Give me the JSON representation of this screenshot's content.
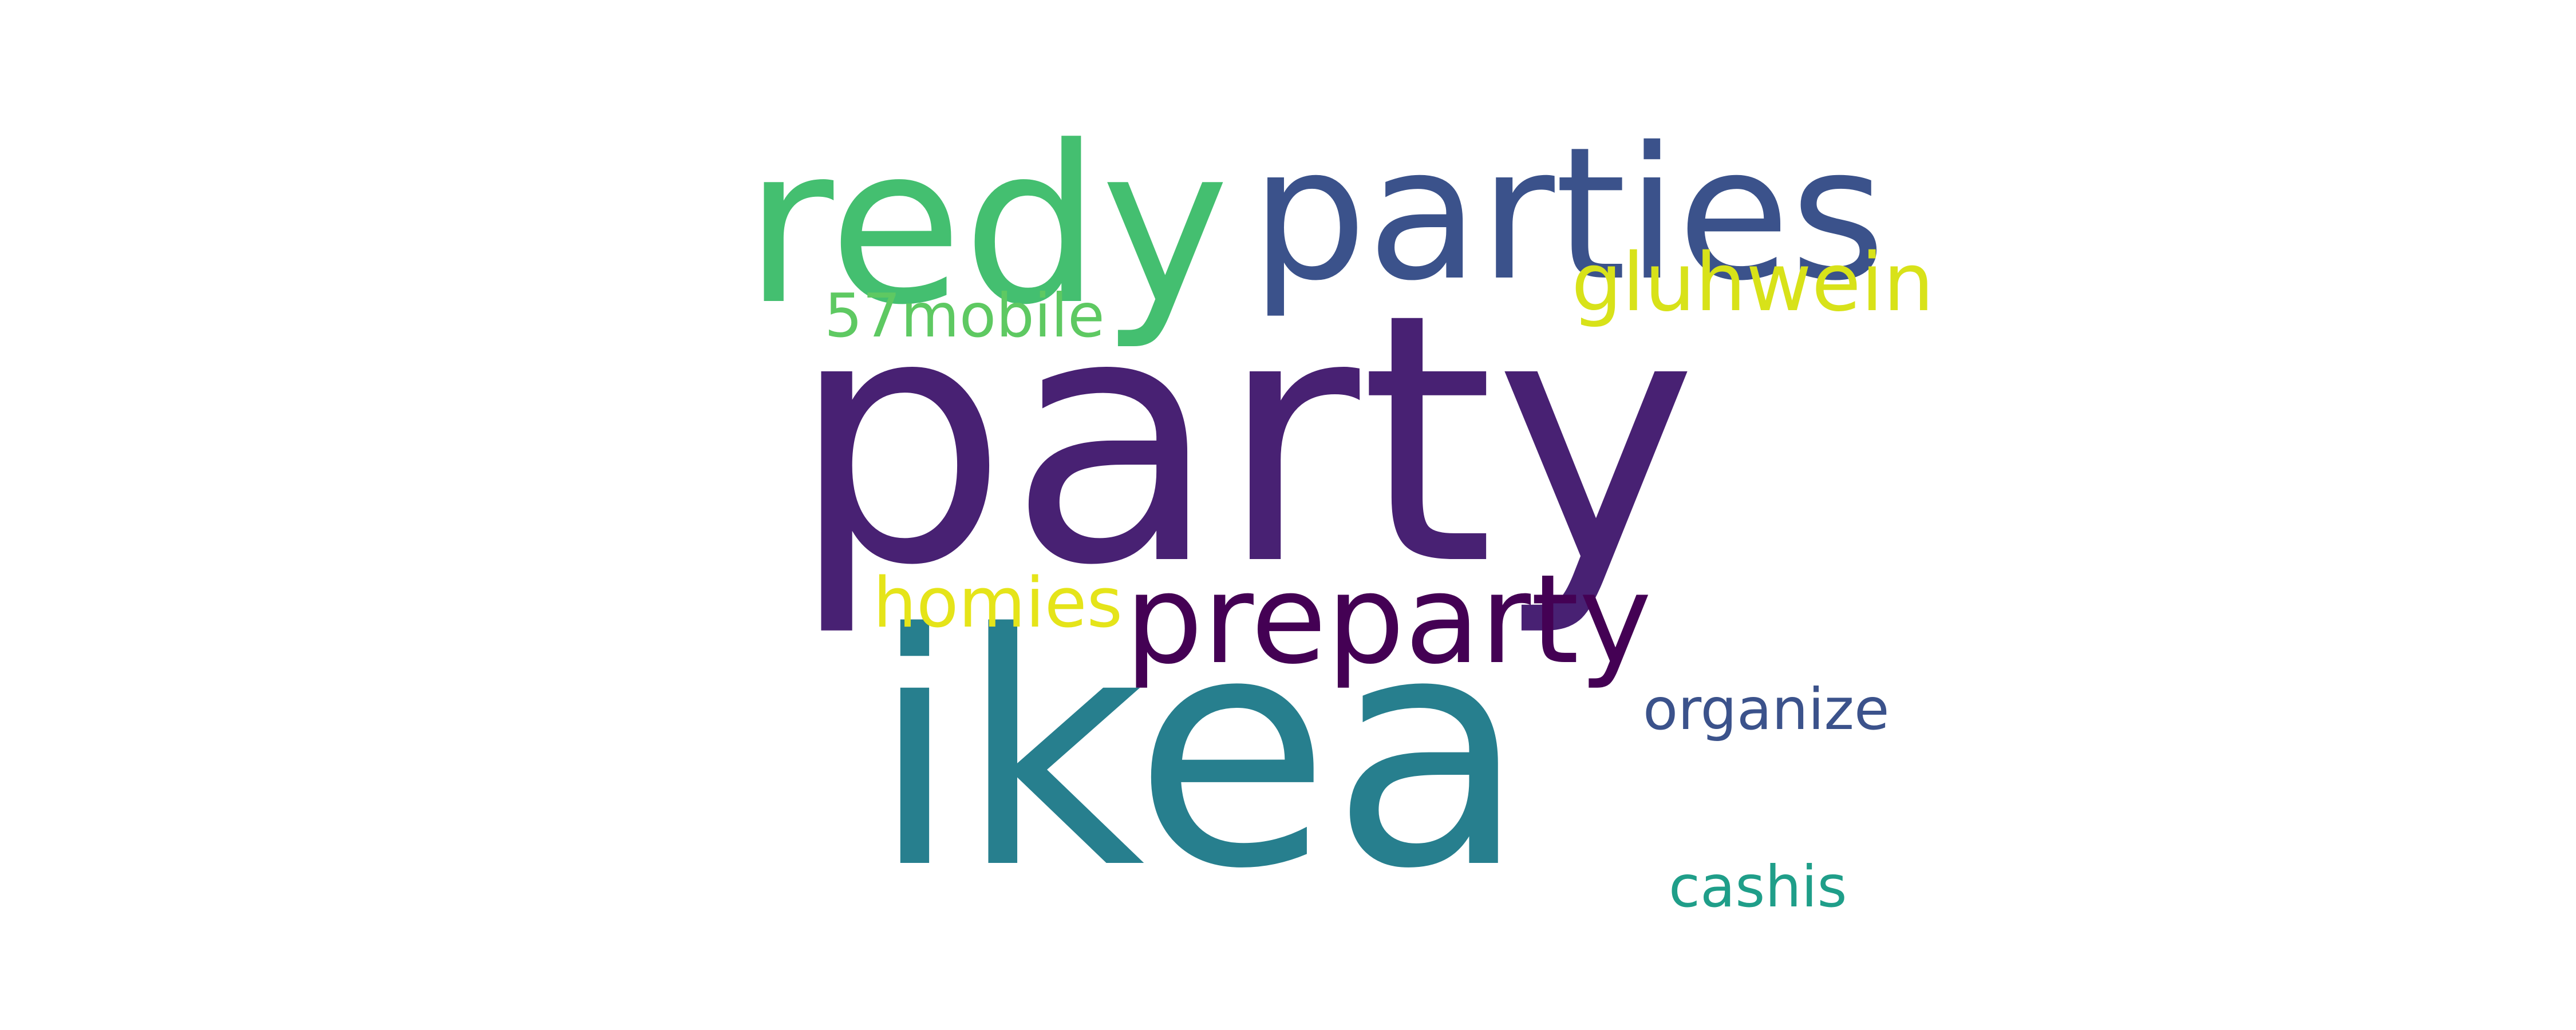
{
  "word_cloud": {
    "words": [
      {
        "key": "party",
        "text": "party",
        "color": "#482173"
      },
      {
        "key": "ikea",
        "text": "ikea",
        "color": "#277f8e"
      },
      {
        "key": "redy",
        "text": "redy",
        "color": "#44bf70"
      },
      {
        "key": "parties",
        "text": "parties",
        "color": "#3b528b"
      },
      {
        "key": "preparty",
        "text": "preparty",
        "color": "#440154"
      },
      {
        "key": "gluhwein",
        "text": "gluhwein",
        "color": "#d8e219"
      },
      {
        "key": "57mobile",
        "text": "57mobile",
        "color": "#5ec962"
      },
      {
        "key": "homies",
        "text": "homies",
        "color": "#e5e419"
      },
      {
        "key": "organize",
        "text": "organize",
        "color": "#3b528b"
      },
      {
        "key": "cashis",
        "text": "cashis",
        "color": "#1f9e89"
      }
    ]
  }
}
